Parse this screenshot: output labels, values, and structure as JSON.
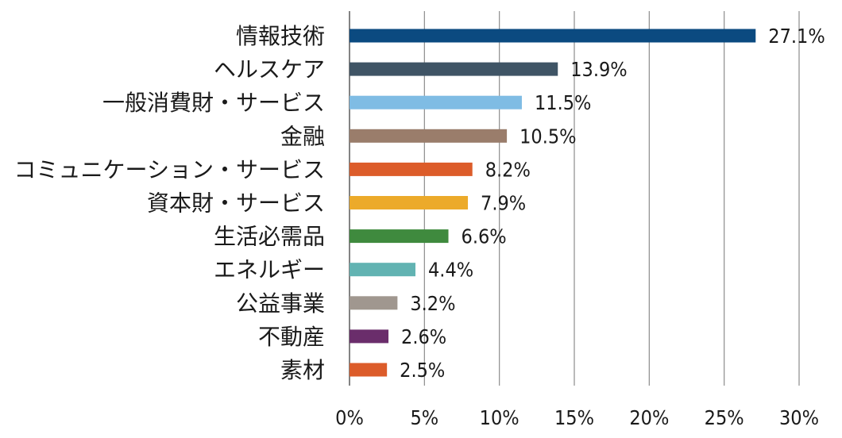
{
  "chart_data": {
    "type": "bar",
    "orientation": "horizontal",
    "title": "",
    "xlabel": "",
    "ylabel": "",
    "xlim": [
      0,
      30
    ],
    "ticks": [
      0,
      5,
      10,
      15,
      20,
      25,
      30
    ],
    "tick_labels": [
      "0%",
      "5%",
      "10%",
      "15%",
      "20%",
      "25%",
      "30%"
    ],
    "grid": "vertical",
    "legend": "none",
    "categories": [
      "情報技術",
      "ヘルスケア",
      "一般消費財・サービス",
      "金融",
      "コミュニケーション・サービス",
      "資本財・サービス",
      "生活必需品",
      "エネルギー",
      "公益事業",
      "不動産",
      "素材"
    ],
    "values": [
      27.1,
      13.9,
      11.5,
      10.5,
      8.2,
      7.9,
      6.6,
      4.4,
      3.2,
      2.6,
      2.5
    ],
    "value_labels": [
      "27.1%",
      "13.9%",
      "11.5%",
      "10.5%",
      "8.2%",
      "7.9%",
      "6.6%",
      "4.4%",
      "3.2%",
      "2.6%",
      "2.5%"
    ],
    "colors": [
      "#0b4a80",
      "#3f5465",
      "#7fbce4",
      "#9a7d6b",
      "#dc5c2a",
      "#ecaa2a",
      "#3f8a3e",
      "#62b3b2",
      "#a0978f",
      "#6a2d6b",
      "#dc5c2a"
    ]
  }
}
